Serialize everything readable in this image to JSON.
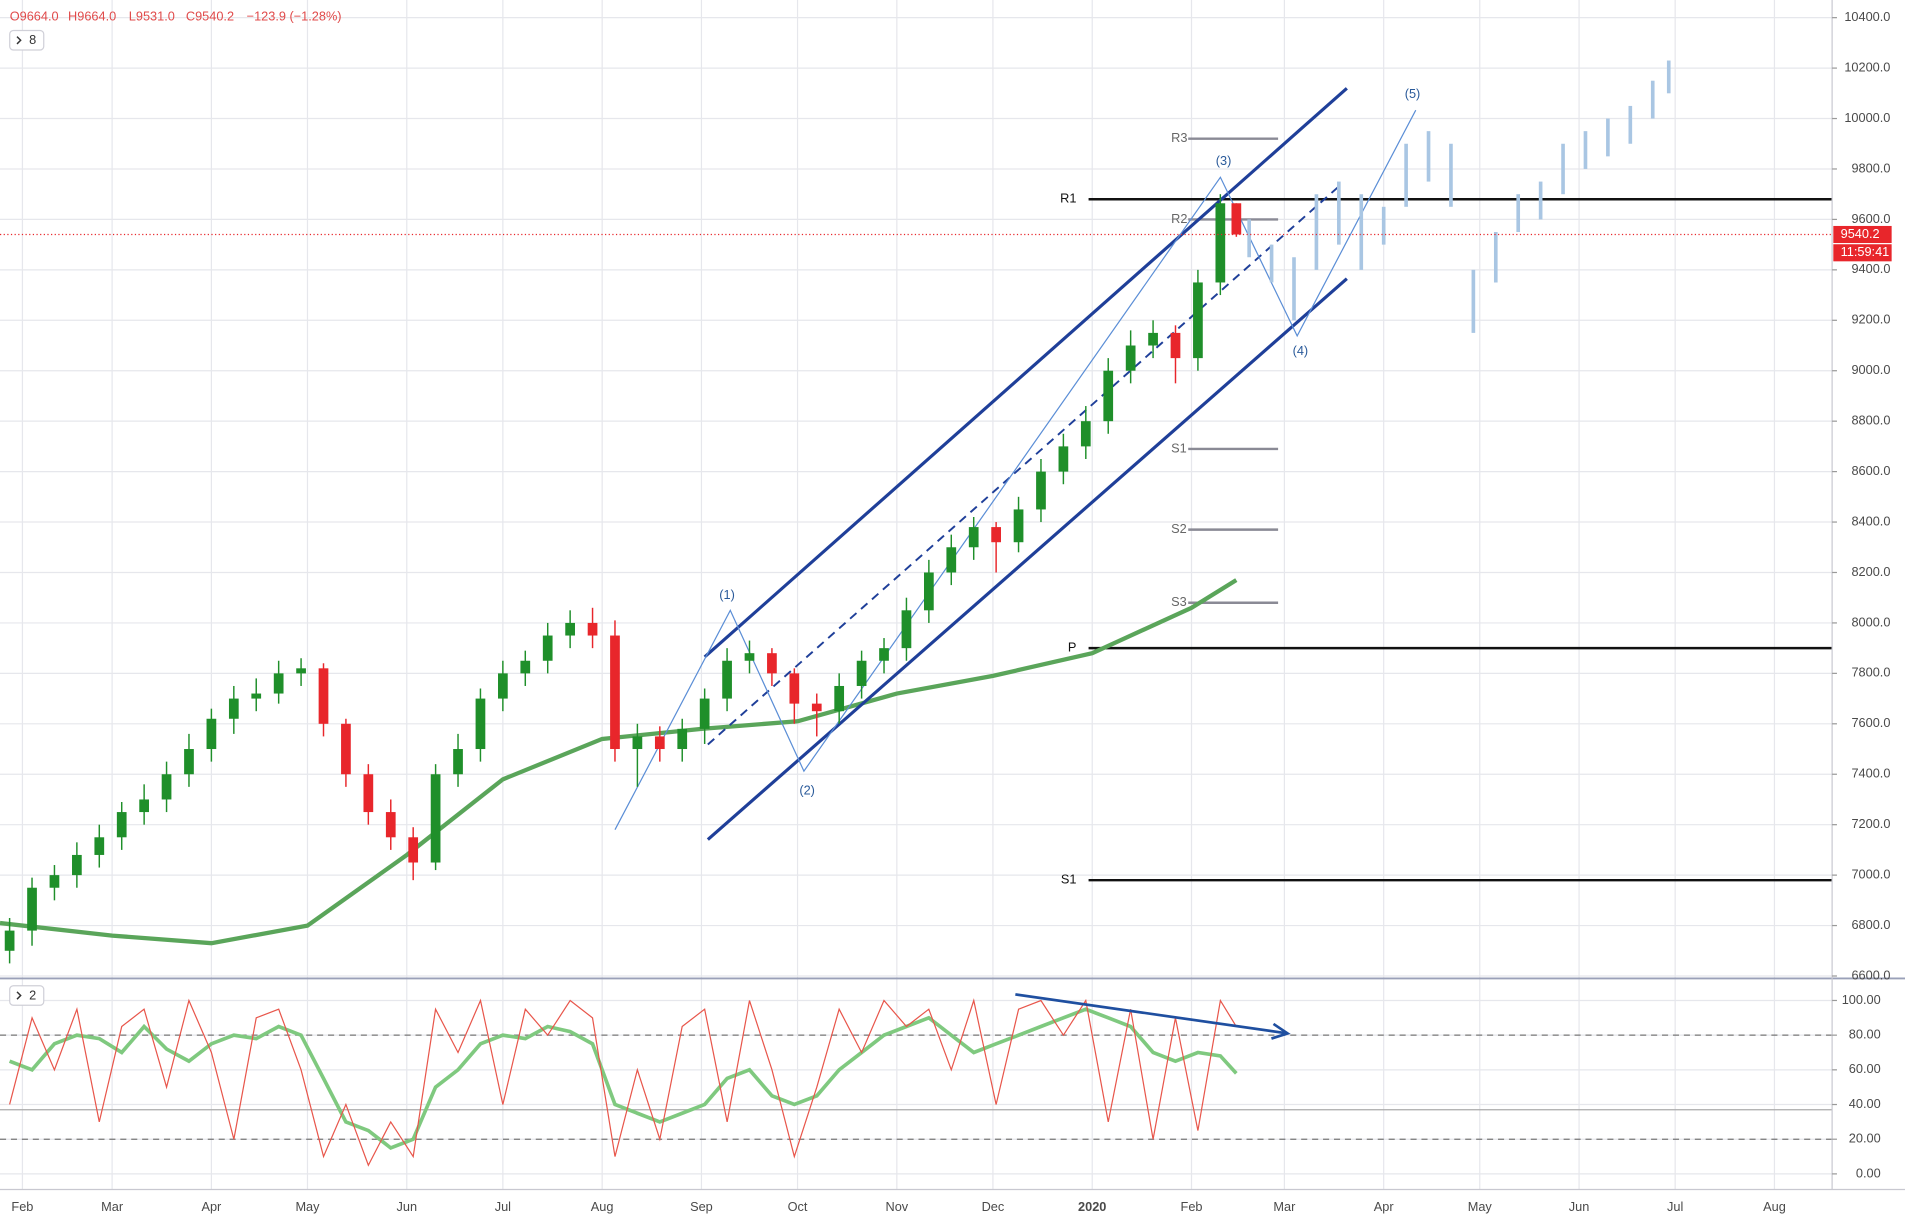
{
  "header": {
    "ohlc": [
      "O9664.0",
      "H9664.0",
      "L9531.0",
      "C9540.2",
      "−123.9 (−1.28%)"
    ],
    "panel_1_count": "8",
    "panel_2_count": "2"
  },
  "chart_data": [
    {
      "type": "candlestick",
      "x": [
        -4,
        3,
        10,
        17,
        24,
        31,
        38,
        45,
        52,
        59,
        66,
        73,
        80,
        87,
        94,
        101,
        108,
        115,
        122,
        129,
        136,
        143,
        150,
        157,
        164,
        171,
        178,
        185,
        192,
        199,
        206,
        213,
        220,
        227,
        234,
        241,
        248,
        255,
        262,
        269,
        276,
        283,
        290,
        297,
        304,
        311,
        318,
        325,
        332,
        339,
        346,
        353,
        360,
        367,
        374,
        379
      ],
      "open": [
        6700,
        6780,
        6950,
        7000,
        7080,
        7150,
        7250,
        7300,
        7400,
        7500,
        7620,
        7700,
        7720,
        7800,
        7820,
        7600,
        7400,
        7250,
        7150,
        7050,
        7400,
        7500,
        7700,
        7800,
        7850,
        7950,
        8000,
        7950,
        7500,
        7550,
        7500,
        7580,
        7700,
        7850,
        7880,
        7800,
        7680,
        7650,
        7750,
        7850,
        7900,
        8050,
        8200,
        8300,
        8380,
        8320,
        8450,
        8600,
        8700,
        8800,
        9000,
        9100,
        9150,
        9050,
        9350,
        9664
      ],
      "high": [
        6830,
        6990,
        7040,
        7130,
        7200,
        7290,
        7360,
        7450,
        7560,
        7660,
        7750,
        7780,
        7850,
        7860,
        7840,
        7620,
        7440,
        7300,
        7190,
        7440,
        7560,
        7740,
        7850,
        7890,
        8000,
        8050,
        8060,
        8010,
        7600,
        7590,
        7620,
        7740,
        7900,
        7930,
        7900,
        7820,
        7720,
        7800,
        7890,
        7940,
        8100,
        8250,
        8350,
        8420,
        8400,
        8500,
        8650,
        8750,
        8860,
        9050,
        9160,
        9200,
        9180,
        9400,
        9700,
        9664
      ],
      "low": [
        6650,
        6720,
        6900,
        6950,
        7030,
        7100,
        7200,
        7250,
        7350,
        7450,
        7560,
        7650,
        7680,
        7750,
        7550,
        7350,
        7200,
        7100,
        6980,
        7020,
        7350,
        7450,
        7650,
        7750,
        7800,
        7900,
        7900,
        7450,
        7350,
        7450,
        7450,
        7520,
        7650,
        7800,
        7750,
        7600,
        7550,
        7600,
        7700,
        7800,
        7850,
        8000,
        8150,
        8250,
        8200,
        8280,
        8400,
        8550,
        8650,
        8750,
        8950,
        9050,
        8950,
        9000,
        9300,
        9531
      ],
      "close": [
        6780,
        6950,
        7000,
        7080,
        7150,
        7250,
        7300,
        7400,
        7500,
        7620,
        7700,
        7720,
        7800,
        7820,
        7600,
        7400,
        7250,
        7150,
        7050,
        7400,
        7500,
        7700,
        7800,
        7850,
        7950,
        8000,
        7950,
        7500,
        7550,
        7500,
        7580,
        7700,
        7850,
        7880,
        7800,
        7680,
        7650,
        7750,
        7850,
        7900,
        8050,
        8200,
        8300,
        8380,
        8320,
        8450,
        8600,
        8700,
        8800,
        9000,
        9100,
        9150,
        9050,
        9350,
        9664,
        9540.2
      ],
      "up_color": "#1f8f2a",
      "down_color": "#e8262b",
      "xlim": [
        -7,
        565
      ],
      "ylim": [
        6600,
        10470
      ],
      "grid": true,
      "xticks": [
        {
          "value": 0,
          "label": "Feb"
        },
        {
          "value": 28,
          "label": "Mar"
        },
        {
          "value": 59,
          "label": "Apr"
        },
        {
          "value": 89,
          "label": "May"
        },
        {
          "value": 120,
          "label": "Jun"
        },
        {
          "value": 150,
          "label": "Jul"
        },
        {
          "value": 181,
          "label": "Aug"
        },
        {
          "value": 212,
          "label": "Sep"
        },
        {
          "value": 242,
          "label": "Oct"
        },
        {
          "value": 273,
          "label": "Nov"
        },
        {
          "value": 303,
          "label": "Dec"
        },
        {
          "value": 334,
          "label": "2020"
        },
        {
          "value": 365,
          "label": "Feb"
        },
        {
          "value": 394,
          "label": "Mar"
        },
        {
          "value": 425,
          "label": "Apr"
        },
        {
          "value": 455,
          "label": "May"
        },
        {
          "value": 486,
          "label": "Jun"
        },
        {
          "value": 516,
          "label": "Jul"
        },
        {
          "value": 547,
          "label": "Aug"
        }
      ],
      "yticks": [
        {
          "value": 6600,
          "label": "6600.0"
        },
        {
          "value": 6800,
          "label": "6800.0"
        },
        {
          "value": 7000,
          "label": "7000.0"
        },
        {
          "value": 7200,
          "label": "7200.0"
        },
        {
          "value": 7400,
          "label": "7400.0"
        },
        {
          "value": 7600,
          "label": "7600.0"
        },
        {
          "value": 7800,
          "label": "7800.0"
        },
        {
          "value": 8000,
          "label": "8000.0"
        },
        {
          "value": 8200,
          "label": "8200.0"
        },
        {
          "value": 8400,
          "label": "8400.0"
        },
        {
          "value": 8600,
          "label": "8600.0"
        },
        {
          "value": 8800,
          "label": "8800.0"
        },
        {
          "value": 9000,
          "label": "9000.0"
        },
        {
          "value": 9200,
          "label": "9200.0"
        },
        {
          "value": 9400,
          "label": "9400.0"
        },
        {
          "value": 9600,
          "label": "9600.0"
        },
        {
          "value": 9800,
          "label": "9800.0"
        },
        {
          "value": 10000,
          "label": "10000.0"
        },
        {
          "value": 10200,
          "label": "10200.0"
        },
        {
          "value": 10400,
          "label": "10400.0"
        }
      ],
      "last_price_time": "11:59:41",
      "moving_average": {
        "color": "#5aa55a",
        "x": [
          -7,
          28,
          59,
          89,
          120,
          150,
          181,
          212,
          242,
          273,
          303,
          334,
          365,
          379
        ],
        "values": [
          6810,
          6760,
          6730,
          6800,
          7080,
          7380,
          7540,
          7580,
          7610,
          7720,
          7790,
          7880,
          8060,
          8170
        ]
      },
      "projection": {
        "color": "#a9c6e3",
        "x": [
          383,
          390,
          397,
          404,
          411,
          418,
          425,
          432,
          439,
          446,
          453,
          460,
          467,
          474,
          481,
          488,
          495,
          502,
          509,
          514
        ],
        "high": [
          9600,
          9500,
          9450,
          9700,
          9750,
          9700,
          9650,
          9900,
          9950,
          9900,
          9400,
          9550,
          9700,
          9750,
          9900,
          9950,
          10000,
          10050,
          10150,
          10230
        ],
        "low": [
          9450,
          9350,
          9200,
          9400,
          9500,
          9400,
          9500,
          9650,
          9750,
          9650,
          9150,
          9350,
          9550,
          9600,
          9700,
          9800,
          9850,
          9900,
          10000,
          10100
        ]
      },
      "pivots": [
        {
          "label": "R1",
          "value": 9680
        },
        {
          "label": "P",
          "value": 7900
        },
        {
          "label": "S1",
          "value": 6980
        }
      ],
      "minor_pivots": [
        {
          "label": "R3",
          "value": 9920
        },
        {
          "label": "R2",
          "value": 9600
        },
        {
          "label": "S1",
          "value": 8690
        },
        {
          "label": "S2",
          "value": 8370
        },
        {
          "label": "S3",
          "value": 8080
        }
      ],
      "channel": {
        "color": "#1f3f99",
        "lines": [
          {
            "x": [
              213,
              413.5
            ],
            "y": [
              7865,
              10120
            ],
            "dashed": false
          },
          {
            "x": [
              214,
              413.5
            ],
            "y": [
              7141,
              9365
            ],
            "dashed": false
          },
          {
            "x": [
              214,
              412
            ],
            "y": [
              7518,
              9742
            ],
            "dashed": true
          }
        ]
      },
      "waves": {
        "color": "#2a5a9a",
        "x": [
          185,
          221,
          244,
          374,
          398,
          435
        ],
        "y": [
          7180,
          8050,
          7412,
          9767,
          9138,
          10033
        ],
        "labels": [
          {
            "text": "(1)",
            "x": 220,
            "y": 8108
          },
          {
            "text": "(2)",
            "x": 245,
            "y": 7334
          },
          {
            "text": "(3)",
            "x": 375,
            "y": 9830
          },
          {
            "text": "(4)",
            "x": 399,
            "y": 9075
          },
          {
            "text": "(5)",
            "x": 434,
            "y": 10095
          }
        ]
      }
    },
    {
      "type": "line",
      "ylim": [
        -9,
        112
      ],
      "yticks": [
        {
          "value": 0,
          "label": "0.00"
        },
        {
          "value": 20,
          "label": "20.00"
        },
        {
          "value": 40,
          "label": "40.00"
        },
        {
          "value": 60,
          "label": "60.00"
        },
        {
          "value": 80,
          "label": "80.00"
        },
        {
          "value": 100,
          "label": "100.00"
        }
      ],
      "series": [
        {
          "color": "#7fc97f",
          "values": [
            65,
            60,
            75,
            80,
            78,
            70,
            85,
            72,
            65,
            75,
            80,
            78,
            85,
            80,
            55,
            30,
            25,
            15,
            20,
            50,
            60,
            75,
            80,
            78,
            85,
            82,
            75,
            40,
            35,
            30,
            35,
            40,
            55,
            60,
            45,
            40,
            45,
            60,
            70,
            80,
            85,
            90,
            80,
            70,
            75,
            80,
            85,
            90,
            95,
            90,
            85,
            70,
            65,
            70,
            68,
            58
          ]
        },
        {
          "color": "#e8564b",
          "values": [
            40,
            90,
            60,
            95,
            30,
            85,
            95,
            50,
            100,
            70,
            20,
            90,
            95,
            60,
            10,
            40,
            5,
            30,
            10,
            95,
            70,
            100,
            40,
            95,
            80,
            100,
            90,
            10,
            60,
            20,
            85,
            95,
            30,
            100,
            60,
            10,
            50,
            95,
            70,
            100,
            85,
            95,
            60,
            100,
            40,
            95,
            100,
            80,
            100,
            30,
            95,
            20,
            90,
            25,
            100,
            85
          ]
        }
      ],
      "levels": [
        {
          "value": 80,
          "dashed": true
        },
        {
          "value": 20,
          "dashed": true
        },
        {
          "value": 37,
          "dashed": false
        }
      ],
      "arrow": {
        "color": "#1f4fa0",
        "x": [
          310,
          395
        ],
        "y": [
          103.5,
          81
        ]
      }
    }
  ]
}
